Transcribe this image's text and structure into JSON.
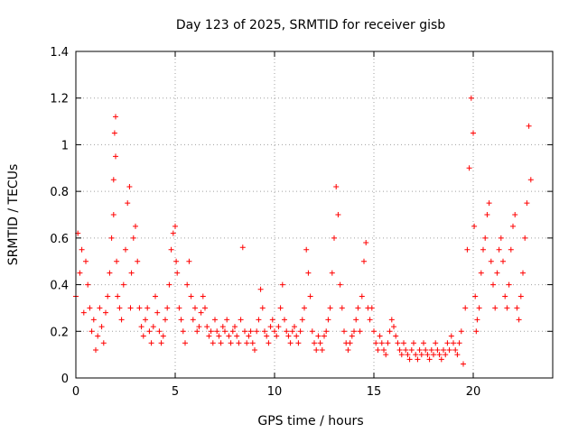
{
  "chart_data": {
    "type": "scatter",
    "title": "Day 123 of 2025, SRMTID for receiver gisb",
    "xlabel": "GPS time / hours",
    "ylabel": "SRMTID / TECUs",
    "xlim": [
      0,
      24
    ],
    "ylim": [
      0,
      1.4
    ],
    "xticks": [
      0,
      5,
      10,
      15,
      20
    ],
    "xtick_labels": [
      "0",
      "5",
      "10",
      "15",
      "20"
    ],
    "yticks": [
      0,
      0.2,
      0.4,
      0.6,
      0.8,
      1.0,
      1.2,
      1.4
    ],
    "ytick_labels": [
      "0",
      "0.2",
      "0.4",
      "0.6",
      "0.8",
      "1",
      "1.2",
      "1.4"
    ],
    "grid": true,
    "marker": "+",
    "color": "#ff0000",
    "series": [
      {
        "name": "SRMTID",
        "x": [
          0.0,
          0.1,
          0.2,
          0.3,
          0.4,
          0.5,
          0.6,
          0.7,
          0.8,
          0.9,
          1.0,
          1.1,
          1.2,
          1.3,
          1.4,
          1.5,
          1.6,
          1.7,
          1.8,
          1.9,
          1.9,
          1.95,
          2.0,
          2.0,
          2.05,
          2.1,
          2.2,
          2.3,
          2.4,
          2.5,
          2.6,
          2.7,
          2.75,
          2.8,
          2.9,
          3.0,
          3.1,
          3.2,
          3.3,
          3.4,
          3.5,
          3.6,
          3.7,
          3.8,
          3.9,
          4.0,
          4.1,
          4.2,
          4.3,
          4.4,
          4.5,
          4.6,
          4.7,
          4.8,
          4.9,
          5.0,
          5.05,
          5.1,
          5.2,
          5.3,
          5.4,
          5.5,
          5.6,
          5.7,
          5.8,
          5.9,
          6.0,
          6.1,
          6.2,
          6.3,
          6.4,
          6.5,
          6.6,
          6.7,
          6.8,
          6.9,
          7.0,
          7.1,
          7.2,
          7.3,
          7.4,
          7.5,
          7.6,
          7.7,
          7.8,
          7.9,
          8.0,
          8.1,
          8.2,
          8.3,
          8.4,
          8.5,
          8.6,
          8.7,
          8.8,
          8.9,
          9.0,
          9.1,
          9.2,
          9.3,
          9.4,
          9.5,
          9.6,
          9.7,
          9.8,
          9.9,
          10.0,
          10.1,
          10.2,
          10.3,
          10.4,
          10.5,
          10.6,
          10.7,
          10.8,
          10.9,
          11.0,
          11.1,
          11.2,
          11.3,
          11.4,
          11.5,
          11.6,
          11.7,
          11.8,
          11.9,
          12.0,
          12.1,
          12.2,
          12.3,
          12.4,
          12.5,
          12.6,
          12.7,
          12.8,
          12.9,
          13.0,
          13.1,
          13.2,
          13.3,
          13.4,
          13.5,
          13.6,
          13.7,
          13.8,
          13.9,
          14.0,
          14.1,
          14.2,
          14.3,
          14.4,
          14.5,
          14.6,
          14.7,
          14.8,
          14.9,
          15.0,
          15.1,
          15.2,
          15.3,
          15.4,
          15.5,
          15.6,
          15.7,
          15.8,
          15.9,
          16.0,
          16.1,
          16.2,
          16.3,
          16.4,
          16.5,
          16.6,
          16.7,
          16.8,
          16.9,
          17.0,
          17.1,
          17.2,
          17.3,
          17.4,
          17.5,
          17.6,
          17.7,
          17.8,
          17.9,
          18.0,
          18.1,
          18.2,
          18.3,
          18.4,
          18.5,
          18.6,
          18.7,
          18.8,
          18.9,
          19.0,
          19.1,
          19.2,
          19.3,
          19.4,
          19.5,
          19.6,
          19.7,
          19.8,
          19.9,
          20.0,
          20.05,
          20.1,
          20.15,
          20.2,
          20.3,
          20.4,
          20.5,
          20.6,
          20.7,
          20.8,
          20.9,
          21.0,
          21.1,
          21.2,
          21.3,
          21.4,
          21.5,
          21.6,
          21.7,
          21.8,
          21.9,
          22.0,
          22.1,
          22.2,
          22.3,
          22.4,
          22.5,
          22.6,
          22.7,
          22.8,
          22.9
        ],
        "y": [
          0.35,
          0.62,
          0.45,
          0.55,
          0.28,
          0.5,
          0.4,
          0.3,
          0.2,
          0.25,
          0.12,
          0.18,
          0.3,
          0.22,
          0.15,
          0.28,
          0.35,
          0.45,
          0.6,
          0.7,
          0.85,
          1.05,
          1.12,
          0.95,
          0.5,
          0.35,
          0.3,
          0.25,
          0.4,
          0.55,
          0.75,
          0.82,
          0.3,
          0.45,
          0.6,
          0.65,
          0.5,
          0.3,
          0.22,
          0.18,
          0.25,
          0.3,
          0.2,
          0.15,
          0.22,
          0.35,
          0.28,
          0.2,
          0.15,
          0.18,
          0.25,
          0.3,
          0.4,
          0.55,
          0.62,
          0.65,
          0.5,
          0.45,
          0.3,
          0.25,
          0.2,
          0.15,
          0.4,
          0.5,
          0.35,
          0.25,
          0.3,
          0.2,
          0.22,
          0.28,
          0.35,
          0.3,
          0.22,
          0.18,
          0.2,
          0.15,
          0.25,
          0.2,
          0.18,
          0.15,
          0.22,
          0.2,
          0.25,
          0.18,
          0.15,
          0.2,
          0.22,
          0.18,
          0.15,
          0.25,
          0.56,
          0.2,
          0.15,
          0.18,
          0.2,
          0.15,
          0.12,
          0.2,
          0.25,
          0.38,
          0.3,
          0.2,
          0.18,
          0.15,
          0.22,
          0.25,
          0.2,
          0.18,
          0.22,
          0.3,
          0.4,
          0.25,
          0.2,
          0.18,
          0.15,
          0.2,
          0.22,
          0.18,
          0.15,
          0.2,
          0.25,
          0.3,
          0.55,
          0.45,
          0.35,
          0.2,
          0.15,
          0.12,
          0.18,
          0.15,
          0.12,
          0.18,
          0.2,
          0.25,
          0.3,
          0.45,
          0.6,
          0.82,
          0.7,
          0.4,
          0.3,
          0.2,
          0.15,
          0.12,
          0.15,
          0.18,
          0.2,
          0.25,
          0.3,
          0.2,
          0.35,
          0.5,
          0.58,
          0.3,
          0.25,
          0.3,
          0.2,
          0.15,
          0.12,
          0.18,
          0.15,
          0.12,
          0.1,
          0.15,
          0.2,
          0.25,
          0.22,
          0.18,
          0.15,
          0.12,
          0.1,
          0.15,
          0.12,
          0.1,
          0.08,
          0.12,
          0.15,
          0.1,
          0.08,
          0.12,
          0.1,
          0.15,
          0.12,
          0.1,
          0.08,
          0.12,
          0.1,
          0.15,
          0.12,
          0.1,
          0.08,
          0.12,
          0.1,
          0.15,
          0.12,
          0.18,
          0.15,
          0.12,
          0.1,
          0.15,
          0.2,
          0.06,
          0.3,
          0.55,
          0.9,
          1.2,
          1.05,
          0.65,
          0.35,
          0.2,
          0.25,
          0.3,
          0.45,
          0.55,
          0.6,
          0.7,
          0.75,
          0.5,
          0.4,
          0.3,
          0.45,
          0.55,
          0.6,
          0.5,
          0.35,
          0.3,
          0.4,
          0.55,
          0.65,
          0.7,
          0.3,
          0.25,
          0.35,
          0.45,
          0.6,
          0.75,
          1.08,
          0.85
        ]
      }
    ]
  }
}
